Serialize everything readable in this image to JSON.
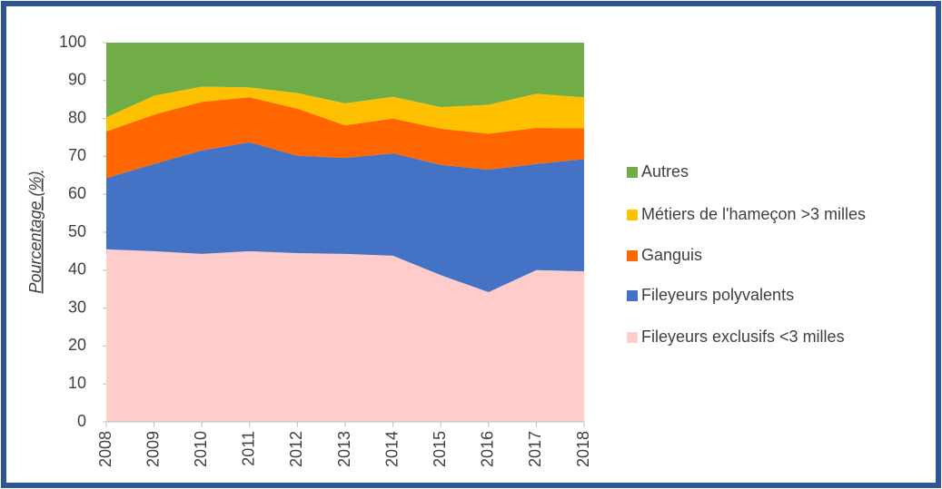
{
  "chart_data": {
    "type": "stacked_area",
    "y_label": "Pourcentage (%)",
    "categories": [
      "2008",
      "2009",
      "2010",
      "2011",
      "2012",
      "2013",
      "2014",
      "2015",
      "2016",
      "2017",
      "2018"
    ],
    "series": [
      {
        "name": "Fileyeurs exclusifs <3 milles",
        "color": "#ffcccc",
        "values": [
          45.5,
          45,
          44.3,
          45,
          44.5,
          44.3,
          43.8,
          38.7,
          34.2,
          40,
          39.7
        ]
      },
      {
        "name": "Fileyeurs polyvalents",
        "color": "#4472c4",
        "values": [
          18.8,
          23,
          27.3,
          28.7,
          25.7,
          25.3,
          27,
          29.1,
          32.3,
          28,
          29.6
        ]
      },
      {
        "name": "Ganguis",
        "color": "#ff6600",
        "values": [
          12.3,
          13,
          12.8,
          11.9,
          12.4,
          8.6,
          9.2,
          9.5,
          9.5,
          9.5,
          8.1
        ]
      },
      {
        "name": "Métiers de l'hameçon >3 milles",
        "color": "#ffc000",
        "values": [
          3.7,
          5,
          4,
          2.6,
          4.1,
          5.8,
          5.7,
          5.7,
          7.6,
          9,
          8.2
        ]
      },
      {
        "name": "Autres",
        "color": "#70ad47",
        "values": [
          19.7,
          14,
          11.6,
          11.8,
          13.3,
          16,
          14.3,
          17,
          16.4,
          13.5,
          14.4
        ]
      }
    ],
    "ylim": [
      0,
      100
    ],
    "yticks": [
      0,
      10,
      20,
      30,
      40,
      50,
      60,
      70,
      80,
      90,
      100
    ],
    "legend": "right"
  }
}
